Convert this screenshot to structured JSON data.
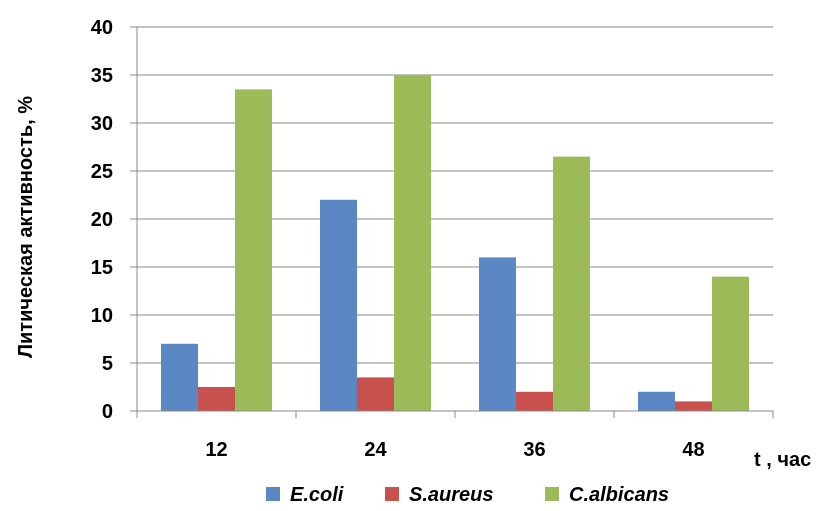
{
  "chart_data": {
    "type": "bar",
    "categories": [
      "12",
      "24",
      "36",
      "48"
    ],
    "series": [
      {
        "name": "E.coli",
        "values": [
          7,
          22,
          16,
          2
        ],
        "color": "#5b87c5"
      },
      {
        "name": "S.aureus",
        "values": [
          2.5,
          3.5,
          2,
          1
        ],
        "color": "#c8504d"
      },
      {
        "name": "C.albicans",
        "values": [
          33.5,
          35,
          26.5,
          14
        ],
        "color": "#9bbb59"
      }
    ],
    "ylabel": "Литическая активность, %",
    "xlabel": "t , час",
    "ylim": [
      0,
      40
    ],
    "yticks": [
      0,
      5,
      10,
      15,
      20,
      25,
      30,
      35,
      40
    ],
    "grid": true,
    "legend_position": "bottom"
  }
}
